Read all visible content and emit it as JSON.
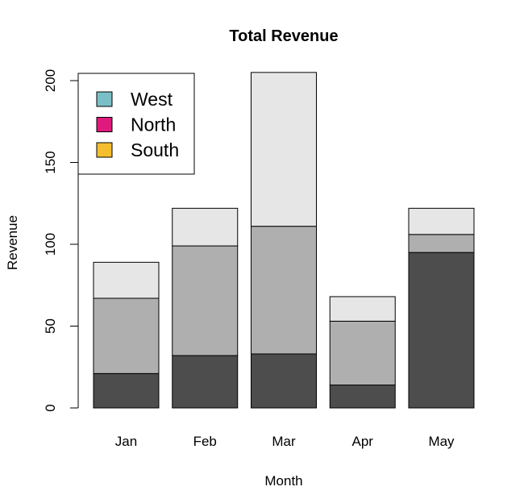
{
  "chart_data": {
    "type": "bar",
    "stacked": true,
    "title": "Total Revenue",
    "xlabel": "Month",
    "ylabel": "Revenue",
    "categories": [
      "Jan",
      "Feb",
      "Mar",
      "Apr",
      "May"
    ],
    "ylim": [
      0,
      205
    ],
    "yticks": [
      0,
      50,
      100,
      150,
      200
    ],
    "grid": false,
    "legend_position": "top-left",
    "legend": [
      {
        "label": "West",
        "color": "#7ABFC7"
      },
      {
        "label": "North",
        "color": "#E0197D"
      },
      {
        "label": "South",
        "color": "#F5BE2E"
      }
    ],
    "series": [
      {
        "color": "#4D4D4D",
        "values": [
          21,
          32,
          33,
          14,
          95
        ]
      },
      {
        "color": "#AFAFAF",
        "values": [
          46,
          67,
          78,
          39,
          11
        ]
      },
      {
        "color": "#E6E6E6",
        "values": [
          22,
          23,
          94,
          15,
          16
        ]
      }
    ]
  }
}
